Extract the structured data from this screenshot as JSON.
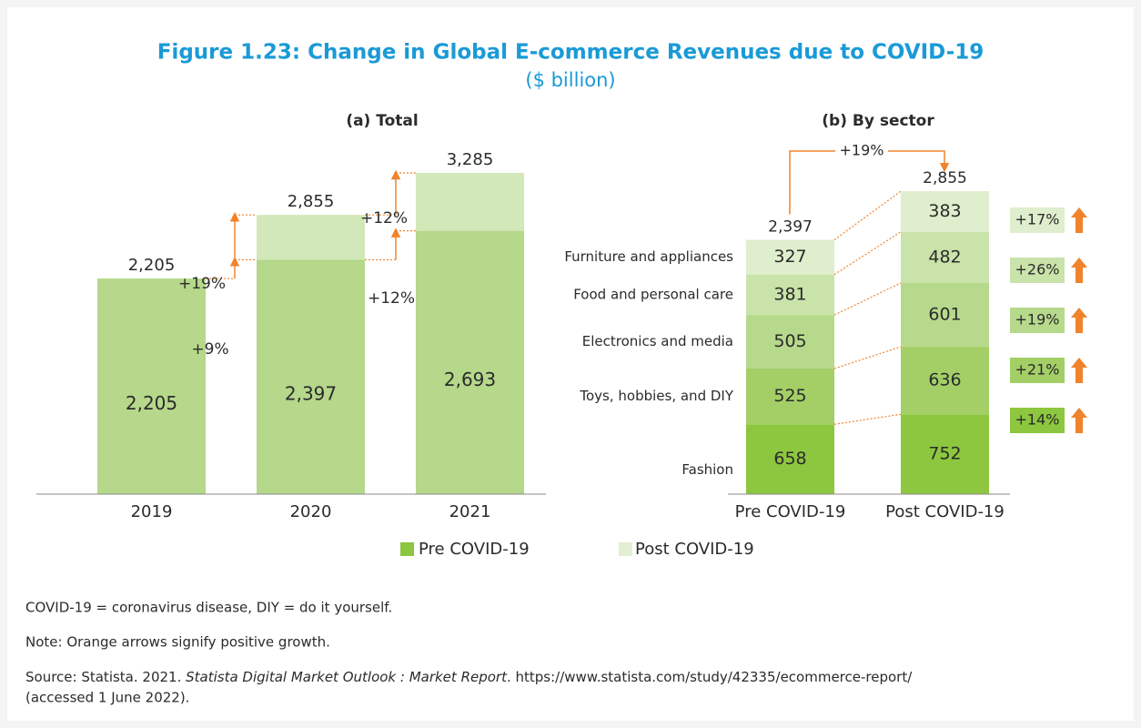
{
  "title": "Figure 1.23: Change in Global E-commerce Revenues due to COVID-19",
  "subtitle": "($ billion)",
  "chart_data": [
    {
      "type": "stacked_bar",
      "title": "(a) Total",
      "categories": [
        "2019",
        "2020",
        "2021"
      ],
      "series": [
        {
          "name": "Pre COVID-19",
          "color": "#b5d88a",
          "values": [
            2205,
            2397,
            2693
          ],
          "value_labels": [
            "2,205",
            "2,397",
            "2,693"
          ]
        },
        {
          "name": "Post COVID-19",
          "color": "#d3e8b8",
          "values": [
            null,
            458,
            592
          ]
        }
      ],
      "totals": [
        2205,
        2855,
        3285
      ],
      "total_labels": [
        "2,205",
        "2,855",
        "3,285"
      ],
      "annotations": [
        "+9%",
        "+19%",
        "+12%",
        "+12%"
      ],
      "legend": "bottom"
    },
    {
      "type": "stacked_bar",
      "title": "(b) By sector",
      "categories": [
        "Pre COVID-19",
        "Post COVID-19"
      ],
      "series": [
        {
          "name": "Fashion",
          "color": "#8dc63f",
          "values": [
            658,
            752
          ]
        },
        {
          "name": "Toys, hobbies, and DIY",
          "color": "#a3cf66",
          "values": [
            525,
            636
          ]
        },
        {
          "name": "Electronics and media",
          "color": "#b6d98b",
          "values": [
            505,
            601
          ]
        },
        {
          "name": "Food and personal care",
          "color": "#c9e3aa",
          "values": [
            381,
            482
          ]
        },
        {
          "name": "Furniture and appliances",
          "color": "#dfeecd",
          "values": [
            327,
            383
          ]
        }
      ],
      "totals": [
        2397,
        2855
      ],
      "total_labels": [
        "2,397",
        "2,855"
      ],
      "growth_labels": [
        "+14%",
        "+21%",
        "+19%",
        "+26%",
        "+17%"
      ],
      "total_growth_label": "+19%"
    }
  ],
  "notes": [
    "COVID-19 = coronavirus disease, DIY = do it yourself.",
    "Note: Orange arrows signify positive growth."
  ],
  "source": [
    "Source: Statista. 2021. ",
    "Statista Digital Market Outlook : Market Report",
    ". https://www.statista.com/study/42335/ecommerce-report/",
    "(accessed 1 June 2022)."
  ]
}
